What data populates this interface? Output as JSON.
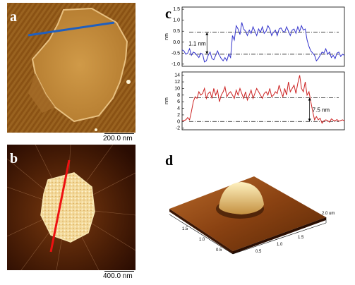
{
  "figure": {
    "panels": {
      "a": {
        "label": "a",
        "scale_bar": "200.0 nm"
      },
      "b": {
        "label": "b",
        "scale_bar": "400.0 nm"
      },
      "c": {
        "label": "c"
      },
      "d": {
        "label": "d"
      }
    }
  },
  "chart_data": [
    {
      "type": "line",
      "ylabel": "nm",
      "ylim": [
        -1.1,
        1.6
      ],
      "yticks": [
        "1.5",
        "1.0",
        "0.5",
        "0.0",
        "-0.5",
        "-1.0"
      ],
      "color": "#3333cc",
      "annotation": "1.1 nm",
      "reference_levels": [
        -0.55,
        0.45
      ],
      "x": [
        0,
        3,
        6,
        9,
        12,
        15,
        18,
        21,
        24,
        27,
        30,
        33,
        36,
        39,
        42,
        45,
        48,
        51,
        54,
        57,
        60,
        63,
        66,
        69,
        72,
        75,
        78,
        81,
        84,
        87,
        90,
        93,
        96,
        99,
        102,
        105,
        108,
        111,
        114,
        117,
        120,
        123,
        126,
        129,
        132,
        135,
        138,
        141,
        144,
        147,
        150,
        153,
        156,
        159,
        162,
        165,
        168,
        171,
        174,
        177,
        180,
        183,
        186,
        189,
        192,
        195,
        198,
        201,
        204,
        207,
        210,
        213,
        216,
        219,
        222,
        225,
        228,
        231,
        234,
        237,
        240,
        243,
        246,
        249,
        252,
        255,
        258,
        261
      ],
      "values": [
        -0.35,
        -0.4,
        -0.55,
        -0.5,
        -0.3,
        -0.6,
        -0.45,
        -0.5,
        -0.6,
        -0.7,
        -0.5,
        -0.55,
        -0.9,
        -0.85,
        -0.6,
        -0.45,
        -0.75,
        -0.8,
        -0.6,
        -0.4,
        -0.6,
        -0.75,
        -0.85,
        -0.7,
        -0.85,
        -0.55,
        -0.7,
        0.3,
        0.1,
        0.75,
        0.6,
        0.35,
        0.9,
        0.6,
        0.5,
        0.3,
        0.55,
        0.4,
        0.7,
        0.5,
        0.3,
        0.6,
        0.45,
        0.7,
        0.4,
        0.5,
        0.75,
        0.6,
        0.3,
        0.45,
        0.55,
        0.3,
        0.6,
        0.65,
        0.5,
        0.45,
        0.7,
        0.5,
        0.3,
        0.55,
        0.6,
        0.4,
        0.7,
        0.5,
        0.75,
        0.55,
        0.6,
        0.1,
        -0.2,
        -0.4,
        -0.5,
        -0.6,
        -0.85,
        -0.75,
        -0.6,
        -0.45,
        -0.5,
        -0.3,
        -0.55,
        -0.45,
        -0.7,
        -0.6,
        -0.75,
        -0.5,
        -0.45,
        -0.65,
        -0.55,
        -0.6
      ]
    },
    {
      "type": "line",
      "ylabel": "nm",
      "ylim": [
        -2.5,
        15
      ],
      "yticks": [
        "14",
        "12",
        "10",
        "8",
        "6",
        "4",
        "2",
        "0",
        "-2"
      ],
      "color": "#cc2222",
      "annotation": "7.5 nm",
      "reference_levels": [
        0,
        7.2
      ],
      "x": [
        0,
        3,
        6,
        9,
        12,
        15,
        18,
        21,
        24,
        27,
        30,
        33,
        36,
        39,
        42,
        45,
        48,
        51,
        54,
        57,
        60,
        63,
        66,
        69,
        72,
        75,
        78,
        81,
        84,
        87,
        90,
        93,
        96,
        99,
        102,
        105,
        108,
        111,
        114,
        117,
        120,
        123,
        126,
        129,
        132,
        135,
        138,
        141,
        144,
        147,
        150,
        153,
        156,
        159,
        162,
        165,
        168,
        171,
        174,
        177,
        180,
        183,
        186,
        189,
        192,
        195,
        198,
        201,
        204,
        207,
        210,
        213,
        216,
        219,
        222,
        225,
        228,
        231,
        234,
        237,
        240,
        243,
        246,
        249,
        252,
        255,
        258,
        261
      ],
      "values": [
        0.2,
        0.3,
        0.5,
        1.2,
        0.5,
        3,
        6,
        7.5,
        7,
        9,
        8,
        8.5,
        10,
        7,
        8.5,
        9,
        7,
        10,
        8,
        9.5,
        6,
        8,
        9,
        10.5,
        7.5,
        8.5,
        9,
        8,
        7,
        9.5,
        8,
        10,
        8.5,
        7,
        9,
        6.5,
        8,
        9.5,
        7,
        8.5,
        10,
        9,
        8,
        7,
        8.5,
        9,
        8,
        10,
        7.5,
        8,
        9,
        8.5,
        11,
        9,
        7.5,
        10,
        8,
        12,
        9,
        10,
        11,
        8.5,
        11.5,
        14,
        10,
        9,
        12,
        8,
        9,
        6,
        3,
        0.5,
        1.5,
        0.5,
        1,
        -0.5,
        0.2,
        0.5,
        0.3,
        -0.2,
        0.8,
        0.4,
        0.2,
        0.6,
        0.1,
        0.3,
        0.5,
        0.2
      ]
    }
  ],
  "surface3d": {
    "axis_left_ticks": [
      "1.5",
      "1.0",
      "0.5"
    ],
    "axis_right_ticks": [
      "1.5",
      "1.0",
      "0.5"
    ],
    "z_unit_label": "2.0 um"
  }
}
